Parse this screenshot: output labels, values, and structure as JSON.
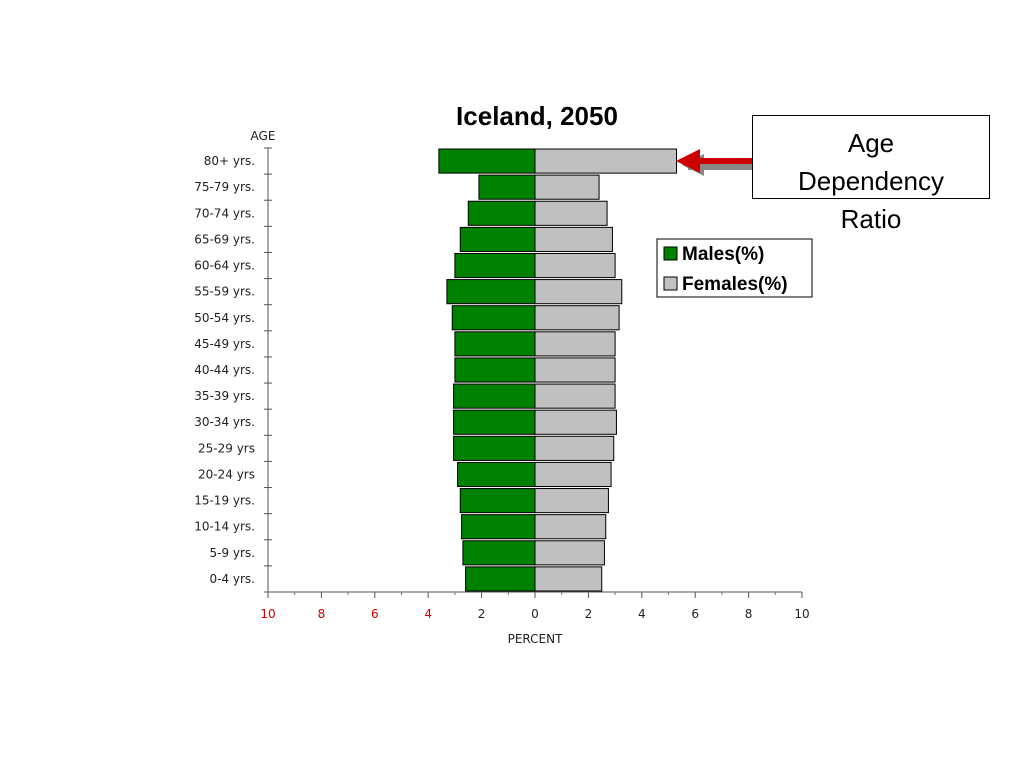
{
  "callout": {
    "line1": "Age",
    "line2": "Dependency",
    "line3": "Ratio"
  },
  "chart_data": {
    "type": "bar",
    "orientation": "horizontal",
    "title": "Iceland, 2050",
    "ylabel": "AGE",
    "xlabel": "PERCENT",
    "categories": [
      "80+ yrs.",
      "75-79 yrs.",
      "70-74 yrs.",
      "65-69 yrs.",
      "60-64 yrs.",
      "55-59 yrs.",
      "50-54 yrs.",
      "45-49 yrs.",
      "40-44 yrs.",
      "35-39 yrs.",
      "30-34 yrs.",
      "25-29 yrs",
      "20-24 yrs",
      "15-19 yrs.",
      "10-14 yrs.",
      "5-9 yrs.",
      "0-4 yrs."
    ],
    "series": [
      {
        "name": "Males(%)",
        "color": "#008000",
        "values": [
          3.6,
          2.1,
          2.5,
          2.8,
          3.0,
          3.3,
          3.1,
          3.0,
          3.0,
          3.05,
          3.05,
          3.05,
          2.9,
          2.8,
          2.75,
          2.7,
          2.6
        ]
      },
      {
        "name": "Females(%)",
        "color": "#c0c0c0",
        "values": [
          5.3,
          2.4,
          2.7,
          2.9,
          3.0,
          3.25,
          3.15,
          3.0,
          3.0,
          3.0,
          3.05,
          2.95,
          2.85,
          2.75,
          2.65,
          2.6,
          2.5
        ]
      }
    ],
    "xlim": [
      -10,
      10
    ],
    "xticks": [
      {
        "label": "10",
        "value": -10,
        "color": "#cc0000"
      },
      {
        "label": "8",
        "value": -8,
        "color": "#cc0000"
      },
      {
        "label": "6",
        "value": -6,
        "color": "#cc0000"
      },
      {
        "label": "4",
        "value": -4,
        "color": "#cc0000"
      },
      {
        "label": "2",
        "value": -2,
        "color": "#222222"
      },
      {
        "label": "0",
        "value": 0,
        "color": "#222222"
      },
      {
        "label": "2",
        "value": 2,
        "color": "#222222"
      },
      {
        "label": "4",
        "value": 4,
        "color": "#222222"
      },
      {
        "label": "6",
        "value": 6,
        "color": "#222222"
      },
      {
        "label": "8",
        "value": 8,
        "color": "#222222"
      },
      {
        "label": "10",
        "value": 10,
        "color": "#222222"
      }
    ],
    "legend": {
      "placement": "right",
      "entries": [
        "Males(%)",
        "Females(%)"
      ]
    },
    "grid": false
  }
}
